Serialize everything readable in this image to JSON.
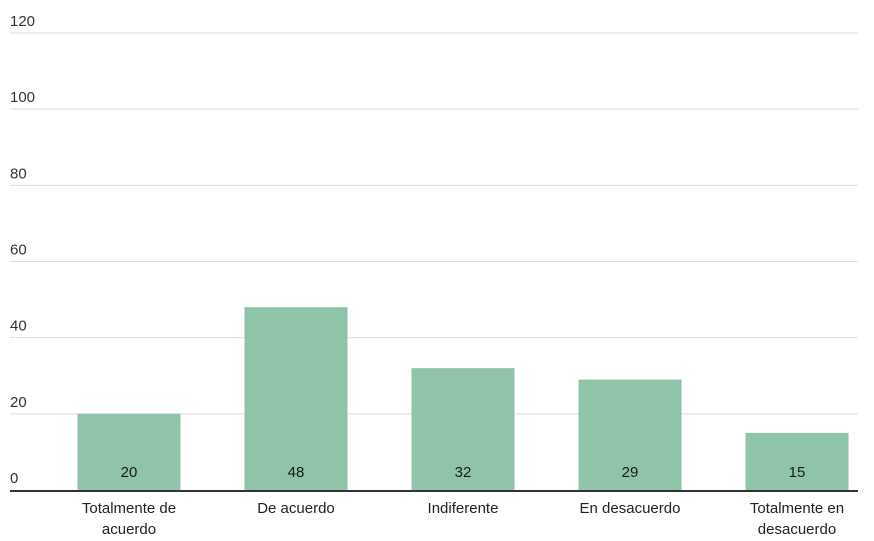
{
  "chart_data": {
    "type": "bar",
    "categories": [
      [
        "Totalmente de",
        "acuerdo"
      ],
      [
        "De acuerdo"
      ],
      [
        "Indiferente"
      ],
      [
        "En desacuerdo"
      ],
      [
        "Totalmente en",
        "desacuerdo"
      ]
    ],
    "values": [
      20,
      48,
      32,
      29,
      15
    ],
    "data_labels": [
      "20",
      "48",
      "32",
      "29",
      "15"
    ],
    "yticks": [
      "0",
      "20",
      "40",
      "60",
      "80",
      "100",
      "120"
    ],
    "ylim": [
      0,
      120
    ],
    "grid": true,
    "legend": "none",
    "colors": {
      "bar": "#8fc4a8",
      "grid": "#dddddd",
      "axis": "#333333"
    }
  }
}
